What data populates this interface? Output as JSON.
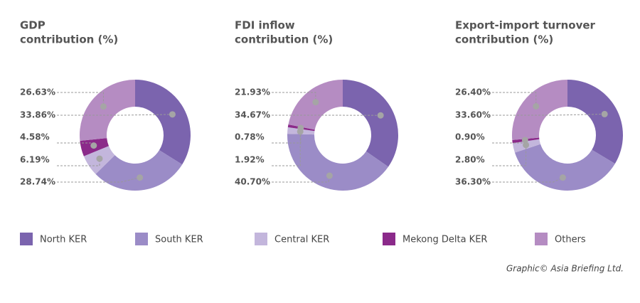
{
  "chart_data": [
    {
      "type": "pie",
      "title": [
        "GDP",
        "contribution (%)"
      ],
      "values": [
        33.86,
        28.74,
        6.19,
        4.58,
        26.63
      ],
      "value_labels": [
        "33.86%",
        "28.74%",
        "6.19%",
        "4.58%",
        "26.63%"
      ]
    },
    {
      "type": "pie",
      "title": [
        "FDI inflow",
        "contribution (%)"
      ],
      "values": [
        34.67,
        40.7,
        1.92,
        0.78,
        21.93
      ],
      "value_labels": [
        "34.67%",
        "40.70%",
        "1.92%",
        "0.78%",
        "21.93%"
      ]
    },
    {
      "type": "pie",
      "title": [
        "Export-import turnover",
        "contribution (%)"
      ],
      "values": [
        33.6,
        36.3,
        2.8,
        0.9,
        26.4
      ],
      "value_labels": [
        "33.60%",
        "36.30%",
        "2.80%",
        "0.90%",
        "26.40%"
      ]
    }
  ],
  "legend": {
    "labels": [
      "North KER",
      "South KER",
      "Central KER",
      "Mekong Delta KER",
      "Others"
    ],
    "colors": [
      "#7b64ae",
      "#9b8cc7",
      "#c3b6dc",
      "#8b2a8a",
      "#b58cc2"
    ]
  },
  "credit": "Graphic© Asia Briefing Ltd."
}
